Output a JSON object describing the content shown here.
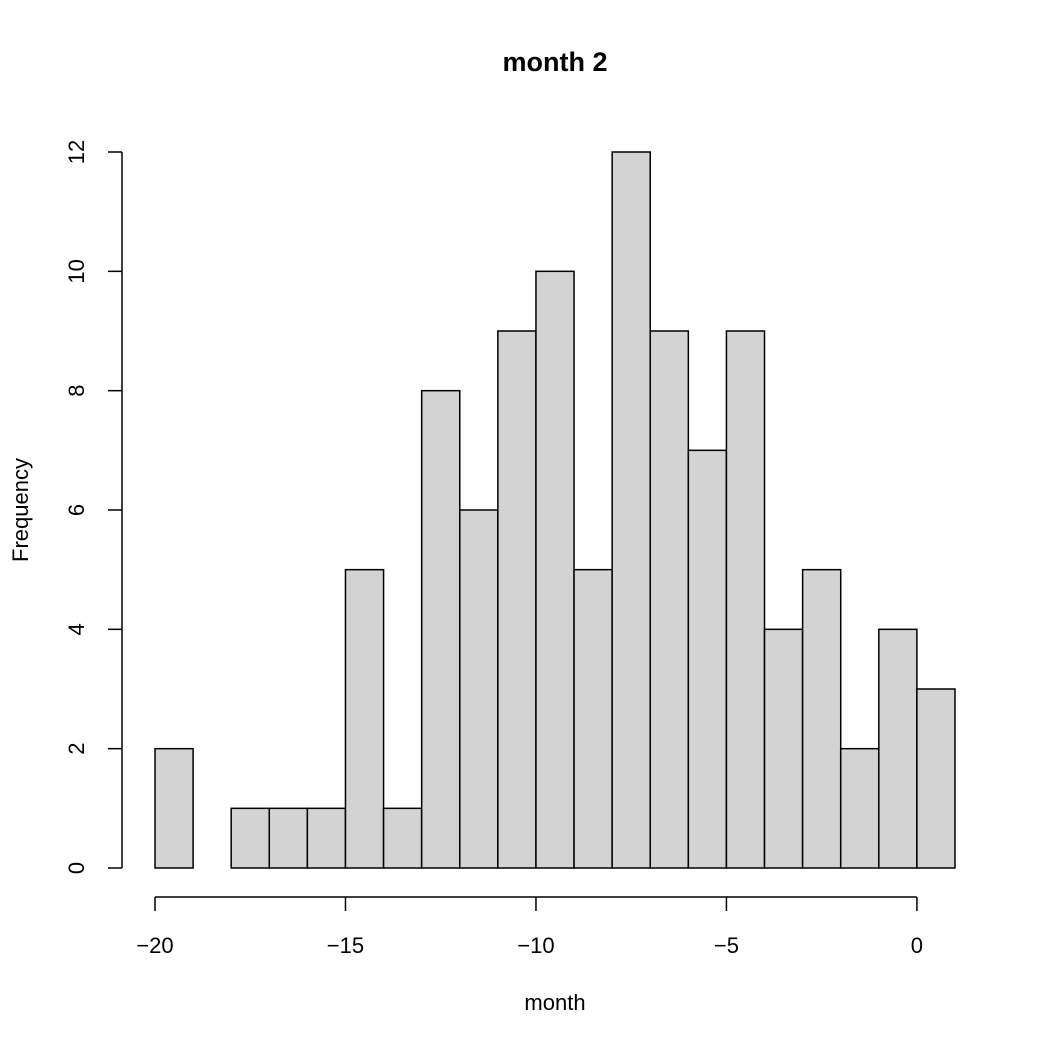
{
  "chart_data": {
    "type": "bar",
    "title": "month 2",
    "xlabel": "month",
    "ylabel": "Frequency",
    "bin_edges": [
      -20,
      -19,
      -18,
      -17,
      -16,
      -15,
      -14,
      -13,
      -12,
      -11,
      -10,
      -9,
      -8,
      -7,
      -6,
      -5,
      -4,
      -3,
      -2,
      -1,
      0,
      1
    ],
    "values": [
      2,
      0,
      1,
      1,
      1,
      5,
      1,
      8,
      6,
      9,
      10,
      5,
      12,
      9,
      7,
      9,
      4,
      5,
      2,
      4,
      3
    ],
    "xlim": [
      -20,
      1
    ],
    "ylim": [
      0,
      12
    ],
    "x_ticks": [
      -20,
      -15,
      -10,
      -5,
      0
    ],
    "x_tick_labels": [
      "−20",
      "−15",
      "−10",
      "−5",
      "0"
    ],
    "y_ticks": [
      0,
      2,
      4,
      6,
      8,
      10,
      12
    ],
    "y_tick_labels": [
      "0",
      "2",
      "4",
      "6",
      "8",
      "10",
      "12"
    ],
    "bar_color": "#d3d3d3",
    "grid": false
  }
}
